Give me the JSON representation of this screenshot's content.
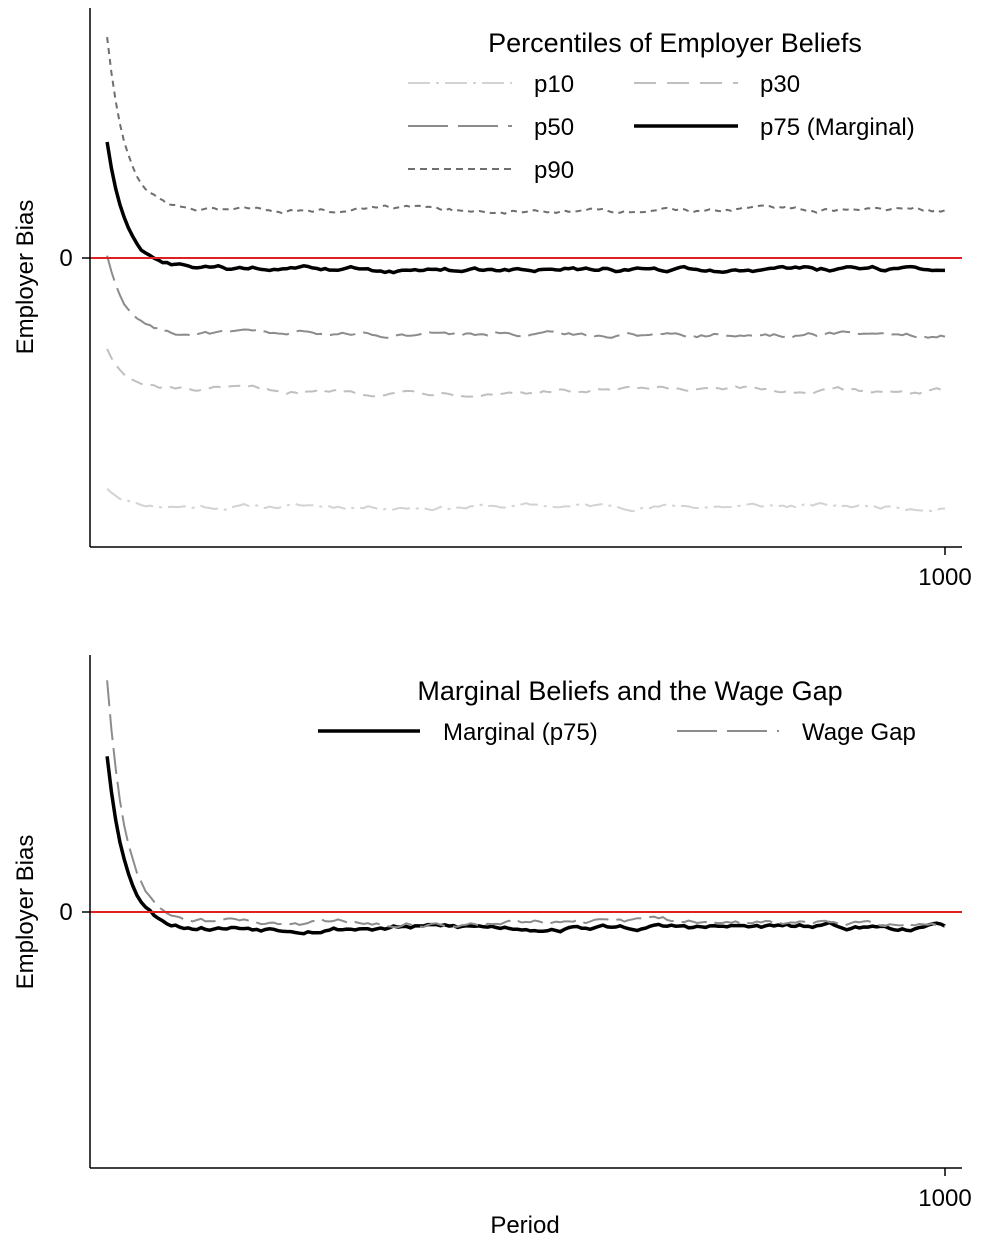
{
  "chart_data": [
    {
      "type": "line",
      "ylabel": "Employer Bias",
      "xlabel": "",
      "x_ticks": [
        "1000"
      ],
      "y_ticks": [
        "0"
      ],
      "xlim": [
        0,
        1000
      ],
      "ylim": [
        -1.0,
        0.85
      ],
      "reference_line": {
        "y": 0,
        "color": "#e02020"
      },
      "legend": {
        "title": "Percentiles of Employer Beliefs",
        "placement": "top-right",
        "columns": 2,
        "entries": [
          "p10",
          "p30",
          "p50",
          "p75 (Marginal)",
          "p90"
        ]
      },
      "series": [
        {
          "name": "p10",
          "color": "#d3d3d3",
          "dash": "dashdot",
          "steady": -0.86,
          "start": -0.8
        },
        {
          "name": "p30",
          "color": "#bfbfbf",
          "dash": "dash",
          "steady": -0.465,
          "start": -0.32
        },
        {
          "name": "p50",
          "color": "#8c8c8c",
          "dash": "longdash",
          "steady": -0.27,
          "start": 0.0
        },
        {
          "name": "p75 (Marginal)",
          "color": "#000000",
          "dash": "solid",
          "steady": -0.05,
          "start": 0.39
        },
        {
          "name": "p90",
          "color": "#6e6e6e",
          "dash": "short",
          "steady": 0.155,
          "start": 0.75
        }
      ]
    },
    {
      "type": "line",
      "ylabel": "Employer Bias",
      "xlabel": "Period",
      "x_ticks": [
        "1000"
      ],
      "y_ticks": [
        "0"
      ],
      "xlim": [
        0,
        1000
      ],
      "ylim": [
        -0.82,
        0.8
      ],
      "reference_line": {
        "y": 0,
        "color": "#e02020"
      },
      "legend": {
        "title": "Marginal Beliefs and the Wage Gap",
        "placement": "top-right",
        "columns": 2,
        "entries": [
          "Marginal (p75)",
          "Wage Gap"
        ]
      },
      "series": [
        {
          "name": "Marginal (p75)",
          "color": "#000000",
          "dash": "solid",
          "steady": -0.06,
          "start": 0.48
        },
        {
          "name": "Wage Gap",
          "color": "#8c8c8c",
          "dash": "longdash",
          "steady": -0.045,
          "start": 0.72
        }
      ]
    }
  ]
}
